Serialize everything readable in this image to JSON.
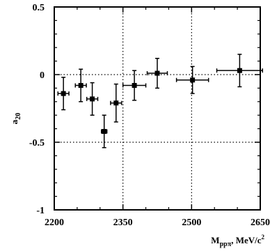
{
  "chart_data": {
    "type": "scatter",
    "xlabel": {
      "main": "M",
      "sub": "ppπ",
      "rest": ", MeV/c",
      "sup": "2"
    },
    "ylabel": {
      "main": "a",
      "sub": "20"
    },
    "xlim": [
      2200,
      2650
    ],
    "ylim": [
      -1,
      0.5
    ],
    "x_ticks": [
      "2200",
      "2350",
      "2500",
      "2650"
    ],
    "y_ticks": [
      "0.5",
      "0",
      "-0.5",
      "-1"
    ],
    "grid": "dotted at x=2350, x=2500, y=0, y=-0.5",
    "points": [
      {
        "x": 2220,
        "y": -0.14,
        "xerr": 12,
        "yerr": 0.12
      },
      {
        "x": 2258,
        "y": -0.08,
        "xerr": 12,
        "yerr": 0.12
      },
      {
        "x": 2283,
        "y": -0.18,
        "xerr": 12,
        "yerr": 0.12
      },
      {
        "x": 2309,
        "y": -0.42,
        "xerr": 6,
        "yerr": 0.12
      },
      {
        "x": 2335,
        "y": -0.21,
        "xerr": 12,
        "yerr": 0.14
      },
      {
        "x": 2375,
        "y": -0.08,
        "xerr": 25,
        "yerr": 0.11
      },
      {
        "x": 2425,
        "y": 0.01,
        "xerr": 22,
        "yerr": 0.11
      },
      {
        "x": 2502,
        "y": -0.04,
        "xerr": 35,
        "yerr": 0.1
      },
      {
        "x": 2605,
        "y": 0.03,
        "xerr": 50,
        "yerr": 0.12
      }
    ]
  }
}
